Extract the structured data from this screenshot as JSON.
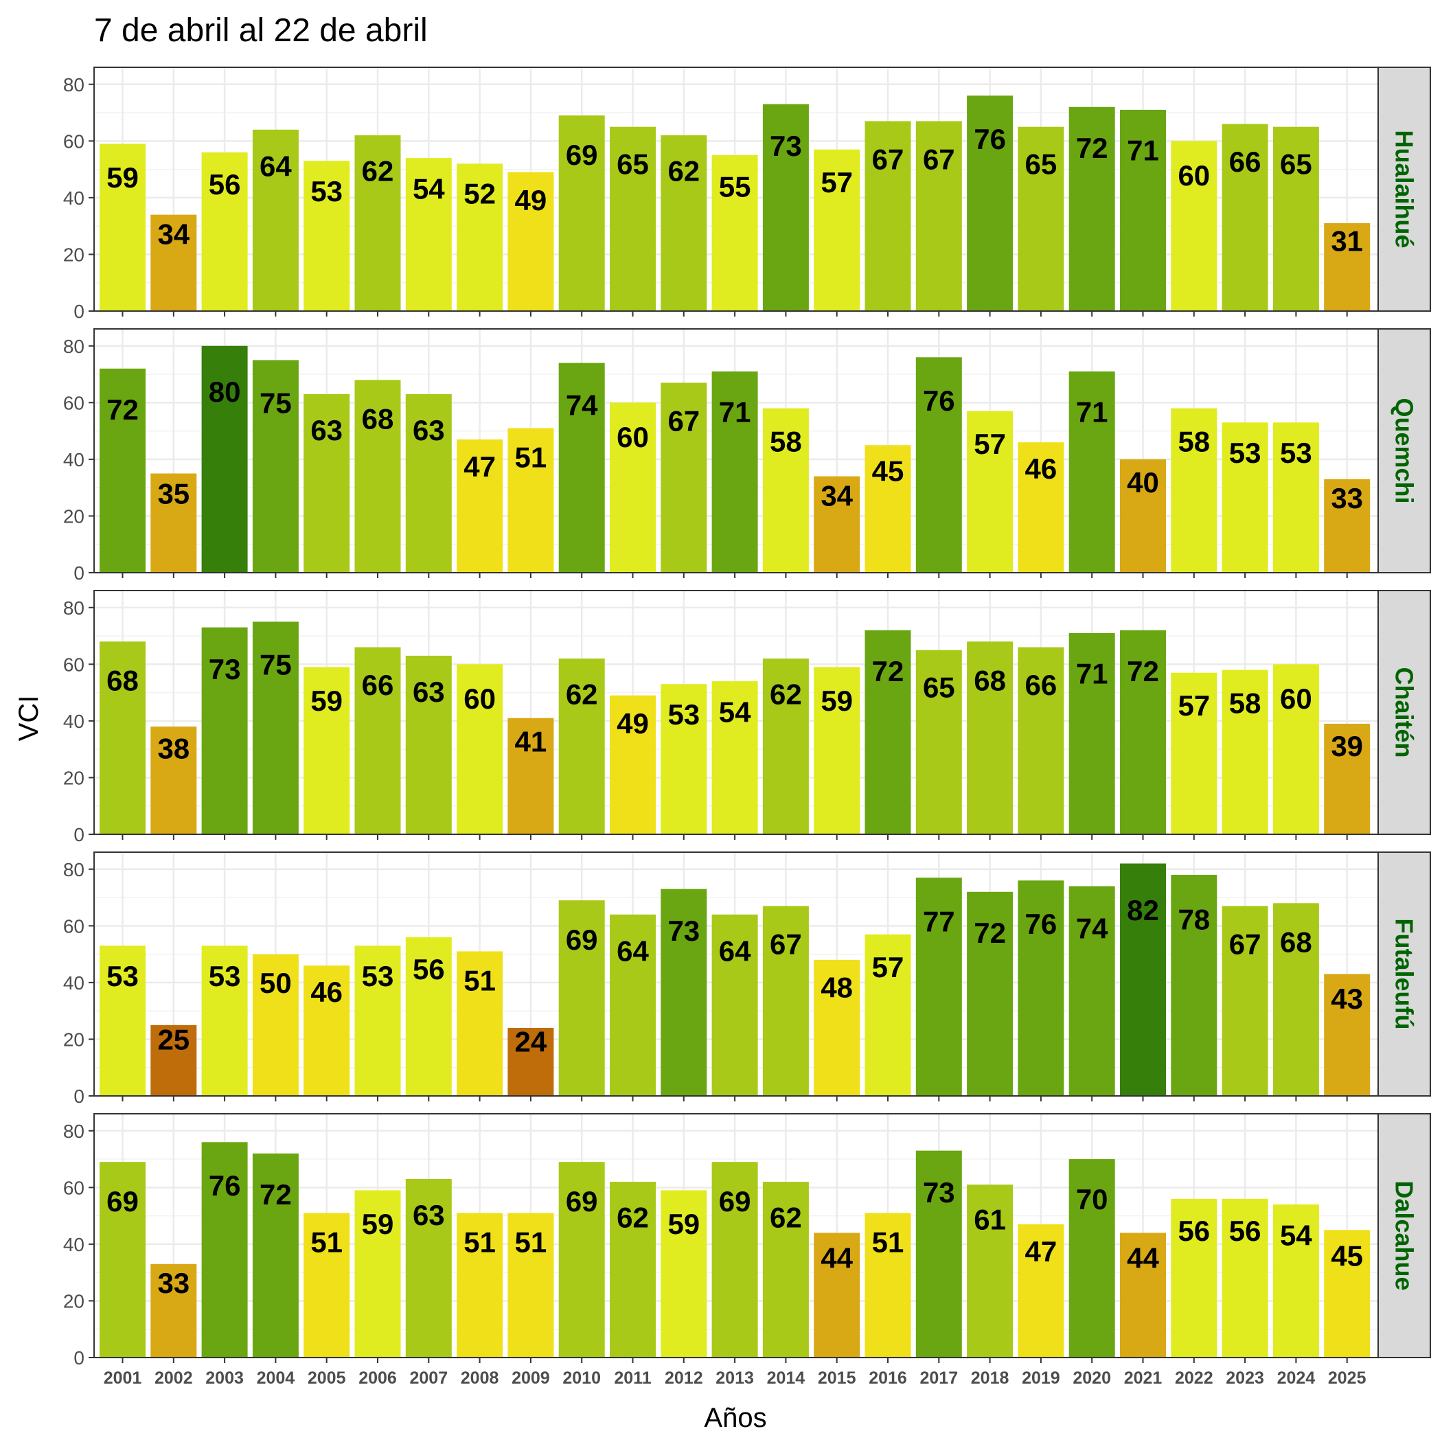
{
  "chart_data": {
    "type": "bar",
    "title": "7 de abril al 22 de abril",
    "xlabel": "Años",
    "ylabel": "VCI",
    "ylim": [
      0,
      86
    ],
    "yticks": [
      0,
      20,
      40,
      60,
      80
    ],
    "grid": true,
    "layout": "faceted vertically, one panel per series, strip labels on the right",
    "categories": [
      "2001",
      "2002",
      "2003",
      "2004",
      "2005",
      "2006",
      "2007",
      "2008",
      "2009",
      "2010",
      "2011",
      "2012",
      "2013",
      "2014",
      "2015",
      "2016",
      "2017",
      "2018",
      "2019",
      "2020",
      "2021",
      "2022",
      "2023",
      "2024",
      "2025"
    ],
    "series": [
      {
        "name": "Hualaihué",
        "values": [
          59,
          34,
          56,
          64,
          53,
          62,
          54,
          52,
          49,
          69,
          65,
          62,
          55,
          73,
          57,
          67,
          67,
          76,
          65,
          72,
          71,
          60,
          66,
          65,
          31
        ]
      },
      {
        "name": "Quemchi",
        "values": [
          72,
          35,
          80,
          75,
          63,
          68,
          63,
          47,
          51,
          74,
          60,
          67,
          71,
          58,
          34,
          45,
          76,
          57,
          46,
          71,
          40,
          58,
          53,
          53,
          33
        ]
      },
      {
        "name": "Chaitén",
        "values": [
          68,
          38,
          73,
          75,
          59,
          66,
          63,
          60,
          41,
          62,
          49,
          53,
          54,
          62,
          59,
          72,
          65,
          68,
          66,
          71,
          72,
          57,
          58,
          60,
          39
        ]
      },
      {
        "name": "Futaleufú",
        "values": [
          53,
          25,
          53,
          50,
          46,
          53,
          56,
          51,
          24,
          69,
          64,
          73,
          64,
          67,
          48,
          57,
          77,
          72,
          76,
          74,
          82,
          78,
          67,
          68,
          43
        ]
      },
      {
        "name": "Dalcahue",
        "values": [
          69,
          33,
          76,
          72,
          51,
          59,
          63,
          51,
          51,
          69,
          62,
          59,
          69,
          62,
          44,
          51,
          73,
          61,
          47,
          70,
          44,
          56,
          56,
          54,
          45
        ]
      }
    ],
    "color_scale": [
      {
        "min": 0,
        "max": 30,
        "color": "#bf6c0b"
      },
      {
        "min": 30,
        "max": 45,
        "color": "#d9a815"
      },
      {
        "min": 45,
        "max": 52,
        "color": "#f0e01a"
      },
      {
        "min": 52,
        "max": 61,
        "color": "#e0ec1f"
      },
      {
        "min": 61,
        "max": 70,
        "color": "#a8c918"
      },
      {
        "min": 70,
        "max": 80,
        "color": "#6aa611"
      },
      {
        "min": 80,
        "max": 101,
        "color": "#357f0a"
      }
    ],
    "strip_text_color": "#006400"
  }
}
